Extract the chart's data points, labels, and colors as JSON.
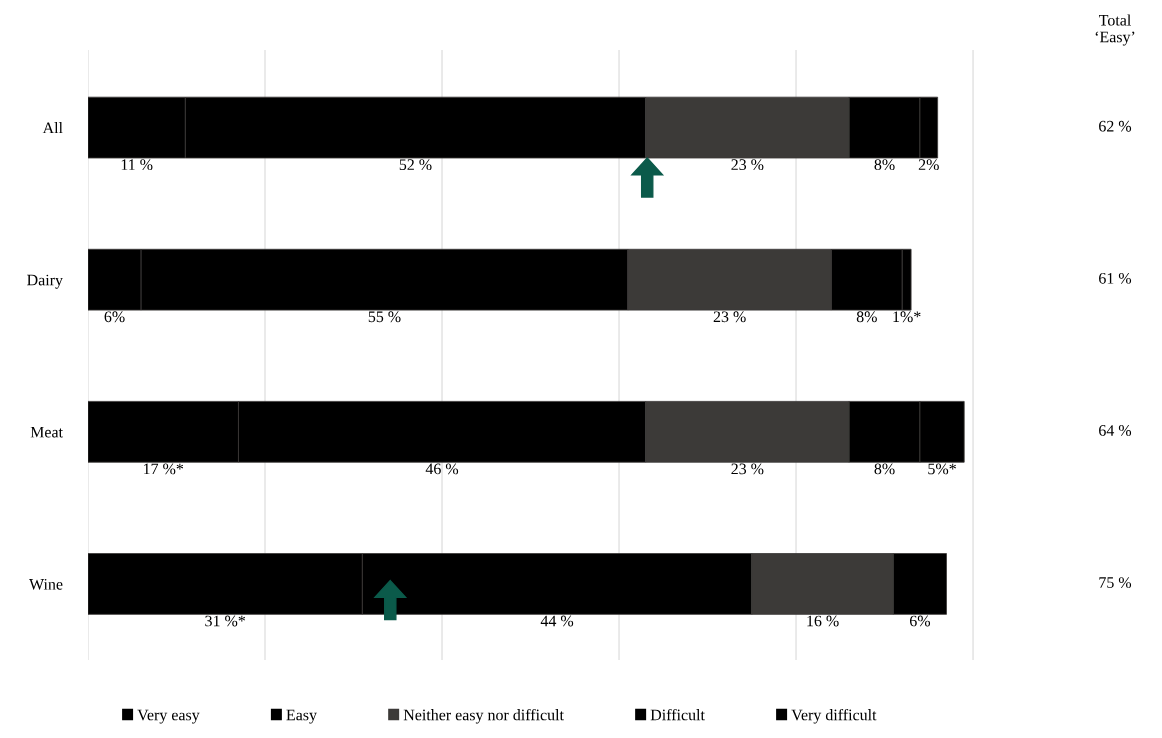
{
  "chart_data": {
    "type": "bar",
    "orientation": "horizontal",
    "stacked": true,
    "categories": [
      "All",
      "Dairy",
      "Meat",
      "Wine"
    ],
    "series": [
      {
        "name": "Very easy",
        "color": "#000000",
        "values": [
          11,
          6,
          17,
          31
        ],
        "value_labels": [
          "11 %",
          "6%",
          "17 %*",
          "31 %*"
        ]
      },
      {
        "name": "Easy",
        "color": "#000000",
        "values": [
          52,
          55,
          46,
          44
        ],
        "value_labels": [
          "52 %",
          "55 %",
          "46 %",
          "44 %"
        ]
      },
      {
        "name": "Neither easy nor difficult",
        "color": "#3c3a38",
        "values": [
          23,
          23,
          23,
          16
        ],
        "value_labels": [
          "23 %",
          "23 %",
          "23 %",
          "16 %"
        ]
      },
      {
        "name": "Difficult",
        "color": "#000000",
        "values": [
          8,
          8,
          8,
          6
        ],
        "value_labels": [
          "8%",
          "8%",
          "8%",
          "6%"
        ]
      },
      {
        "name": "Very difficult",
        "color": "#000000",
        "values": [
          2,
          1,
          5,
          null
        ],
        "value_labels": [
          "2%",
          "1%*",
          "5%*",
          null
        ]
      }
    ],
    "grid": "x",
    "legend": "bottom",
    "annotations": [
      "Total ‘Easy’",
      "62 %",
      "61 %",
      "64 %",
      "75 %"
    ]
  }
}
